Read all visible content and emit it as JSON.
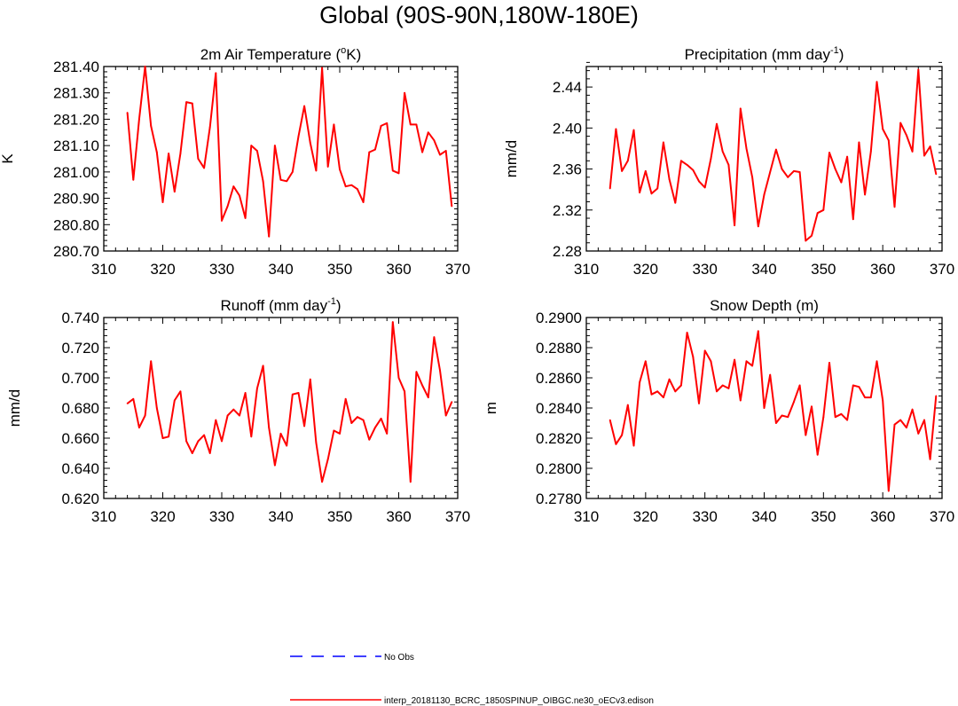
{
  "title": "Global (90S-90N,180W-180E)",
  "colors": {
    "series": "#ff0000",
    "obs": "#0000ff",
    "axis": "#000000"
  },
  "legend": {
    "obs_label": "No Obs",
    "model_label": "interp_20181130_BCRC_1850SPINUP_OIBGC.ne30_oECv3.edison"
  },
  "chart_data": [
    {
      "type": "line",
      "title": "2m Air Temperature (°K)",
      "title_base": "2m Air Temperature (",
      "title_sup": "o",
      "title_post": "K)",
      "xlabel": "",
      "ylabel": "K",
      "xlim": [
        310,
        370
      ],
      "ylim": [
        280.7,
        281.4
      ],
      "xticks": [
        310,
        320,
        330,
        340,
        350,
        360,
        370
      ],
      "yticks": [
        280.7,
        280.8,
        280.9,
        281.0,
        281.1,
        281.2,
        281.3,
        281.4
      ],
      "ytick_labels": [
        "280.70",
        "280.80",
        "280.90",
        "281.00",
        "281.10",
        "281.20",
        "281.30",
        "281.40"
      ],
      "x": [
        314,
        315,
        316,
        317,
        318,
        319,
        320,
        321,
        322,
        323,
        324,
        325,
        326,
        327,
        328,
        329,
        330,
        331,
        332,
        333,
        334,
        335,
        336,
        337,
        338,
        339,
        340,
        341,
        342,
        343,
        344,
        345,
        346,
        347,
        348,
        349,
        350,
        351,
        352,
        353,
        354,
        355,
        356,
        357,
        358,
        359,
        360,
        361,
        362,
        363,
        364,
        365,
        366,
        367,
        368,
        369
      ],
      "values": [
        281.225,
        280.97,
        281.2,
        281.4,
        281.175,
        281.075,
        280.885,
        281.07,
        280.925,
        281.07,
        281.265,
        281.26,
        281.05,
        281.015,
        281.17,
        281.375,
        280.815,
        280.87,
        280.945,
        280.91,
        280.825,
        281.1,
        281.08,
        280.965,
        280.755,
        281.1,
        280.97,
        280.965,
        281.0,
        281.135,
        281.25,
        281.11,
        281.005,
        281.395,
        281.02,
        281.18,
        281.01,
        280.945,
        280.95,
        280.935,
        280.885,
        281.075,
        281.085,
        281.175,
        281.185,
        281.005,
        280.995,
        281.3,
        281.18,
        281.18,
        281.075,
        281.15,
        281.12,
        281.065,
        281.08,
        280.87
      ]
    },
    {
      "type": "line",
      "title": "Precipitation (mm day-1)",
      "title_base": "Precipitation (mm day",
      "title_sup": "-1",
      "title_post": ")",
      "xlabel": "",
      "ylabel": "mm/d",
      "xlim": [
        310,
        370
      ],
      "ylim": [
        2.28,
        2.46
      ],
      "xticks": [
        310,
        320,
        330,
        340,
        350,
        360,
        370
      ],
      "yticks": [
        2.28,
        2.32,
        2.36,
        2.4,
        2.44
      ],
      "ytick_labels": [
        "2.28",
        "2.32",
        "2.36",
        "2.40",
        "2.44"
      ],
      "x": [
        314,
        315,
        316,
        317,
        318,
        319,
        320,
        321,
        322,
        323,
        324,
        325,
        326,
        327,
        328,
        329,
        330,
        331,
        332,
        333,
        334,
        335,
        336,
        337,
        338,
        339,
        340,
        341,
        342,
        343,
        344,
        345,
        346,
        347,
        348,
        349,
        350,
        351,
        352,
        353,
        354,
        355,
        356,
        357,
        358,
        359,
        360,
        361,
        362,
        363,
        364,
        365,
        366,
        367,
        368,
        369
      ],
      "values": [
        2.341,
        2.399,
        2.358,
        2.368,
        2.398,
        2.337,
        2.358,
        2.336,
        2.341,
        2.386,
        2.35,
        2.327,
        2.368,
        2.364,
        2.359,
        2.348,
        2.342,
        2.37,
        2.404,
        2.377,
        2.364,
        2.305,
        2.419,
        2.38,
        2.352,
        2.304,
        2.335,
        2.357,
        2.379,
        2.36,
        2.352,
        2.358,
        2.357,
        2.29,
        2.295,
        2.317,
        2.32,
        2.376,
        2.36,
        2.347,
        2.372,
        2.311,
        2.386,
        2.335,
        2.377,
        2.445,
        2.399,
        2.388,
        2.323,
        2.405,
        2.393,
        2.377,
        2.457,
        2.373,
        2.382,
        2.355
      ]
    },
    {
      "type": "line",
      "title": "Runoff (mm day-1)",
      "title_base": "Runoff (mm day",
      "title_sup": "-1",
      "title_post": ")",
      "xlabel": "",
      "ylabel": "mm/d",
      "xlim": [
        310,
        370
      ],
      "ylim": [
        0.62,
        0.74
      ],
      "xticks": [
        310,
        320,
        330,
        340,
        350,
        360,
        370
      ],
      "yticks": [
        0.62,
        0.64,
        0.66,
        0.68,
        0.7,
        0.72,
        0.74
      ],
      "ytick_labels": [
        "0.620",
        "0.640",
        "0.660",
        "0.680",
        "0.700",
        "0.720",
        "0.740"
      ],
      "x": [
        314,
        315,
        316,
        317,
        318,
        319,
        320,
        321,
        322,
        323,
        324,
        325,
        326,
        327,
        328,
        329,
        330,
        331,
        332,
        333,
        334,
        335,
        336,
        337,
        338,
        339,
        340,
        341,
        342,
        343,
        344,
        345,
        346,
        347,
        348,
        349,
        350,
        351,
        352,
        353,
        354,
        355,
        356,
        357,
        358,
        359,
        360,
        361,
        362,
        363,
        364,
        365,
        366,
        367,
        368,
        369
      ],
      "values": [
        0.683,
        0.686,
        0.667,
        0.675,
        0.711,
        0.68,
        0.66,
        0.661,
        0.685,
        0.691,
        0.658,
        0.65,
        0.658,
        0.662,
        0.65,
        0.672,
        0.658,
        0.675,
        0.679,
        0.675,
        0.69,
        0.661,
        0.693,
        0.708,
        0.667,
        0.642,
        0.663,
        0.655,
        0.689,
        0.69,
        0.668,
        0.699,
        0.657,
        0.631,
        0.646,
        0.665,
        0.663,
        0.686,
        0.67,
        0.674,
        0.672,
        0.659,
        0.667,
        0.673,
        0.663,
        0.737,
        0.7,
        0.691,
        0.631,
        0.704,
        0.695,
        0.687,
        0.727,
        0.705,
        0.675,
        0.684
      ]
    },
    {
      "type": "line",
      "title": "Snow Depth (m)",
      "title_base": "Snow Depth (m)",
      "title_sup": "",
      "title_post": "",
      "xlabel": "",
      "ylabel": "m",
      "xlim": [
        310,
        370
      ],
      "ylim": [
        0.278,
        0.29
      ],
      "xticks": [
        310,
        320,
        330,
        340,
        350,
        360,
        370
      ],
      "yticks": [
        0.278,
        0.28,
        0.282,
        0.284,
        0.286,
        0.288,
        0.29
      ],
      "ytick_labels": [
        "0.2780",
        "0.2800",
        "0.2820",
        "0.2840",
        "0.2860",
        "0.2880",
        "0.2900"
      ],
      "x": [
        314,
        315,
        316,
        317,
        318,
        319,
        320,
        321,
        322,
        323,
        324,
        325,
        326,
        327,
        328,
        329,
        330,
        331,
        332,
        333,
        334,
        335,
        336,
        337,
        338,
        339,
        340,
        341,
        342,
        343,
        344,
        345,
        346,
        347,
        348,
        349,
        350,
        351,
        352,
        353,
        354,
        355,
        356,
        357,
        358,
        359,
        360,
        361,
        362,
        363,
        364,
        365,
        366,
        367,
        368,
        369
      ],
      "values": [
        0.2832,
        0.2816,
        0.2822,
        0.2842,
        0.2815,
        0.2857,
        0.2871,
        0.2849,
        0.2851,
        0.2847,
        0.2859,
        0.2851,
        0.2855,
        0.289,
        0.2874,
        0.2843,
        0.2878,
        0.2871,
        0.2851,
        0.2855,
        0.2853,
        0.2872,
        0.2845,
        0.2871,
        0.2868,
        0.2891,
        0.284,
        0.2862,
        0.283,
        0.2835,
        0.2834,
        0.2844,
        0.2855,
        0.2822,
        0.2841,
        0.2809,
        0.2834,
        0.287,
        0.2834,
        0.2836,
        0.2832,
        0.2855,
        0.2854,
        0.2847,
        0.2847,
        0.2871,
        0.2845,
        0.2785,
        0.2829,
        0.2832,
        0.2827,
        0.2839,
        0.2823,
        0.2832,
        0.2806,
        0.2848
      ]
    }
  ]
}
